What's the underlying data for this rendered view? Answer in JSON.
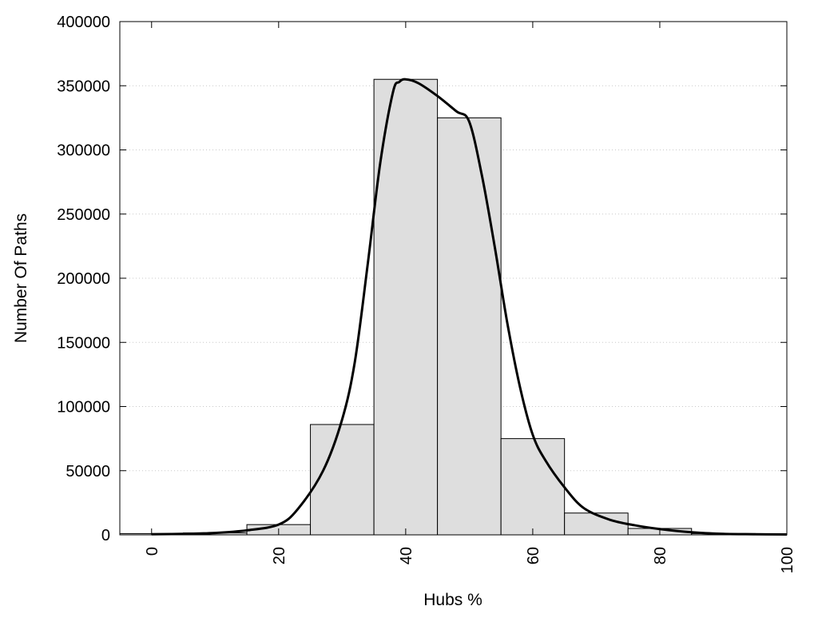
{
  "chart_data": {
    "type": "bar",
    "title": "",
    "xlabel": "Hubs %",
    "ylabel": "Number Of Paths",
    "xlim": [
      -5,
      100
    ],
    "ylim": [
      0,
      400000
    ],
    "grid": true,
    "x_ticks": [
      0,
      20,
      40,
      60,
      80,
      100
    ],
    "y_ticks": [
      0,
      50000,
      100000,
      150000,
      200000,
      250000,
      300000,
      350000,
      400000
    ],
    "bar_width": 10,
    "bars": [
      {
        "x": 0,
        "value": 1000
      },
      {
        "x": 10,
        "value": 1500
      },
      {
        "x": 20,
        "value": 8000
      },
      {
        "x": 30,
        "value": 86000
      },
      {
        "x": 40,
        "value": 355000
      },
      {
        "x": 50,
        "value": 325000
      },
      {
        "x": 60,
        "value": 75000
      },
      {
        "x": 70,
        "value": 17000
      },
      {
        "x": 80,
        "value": 5000
      },
      {
        "x": 90,
        "value": 1000
      }
    ],
    "curve": {
      "x": [
        0,
        5,
        10,
        15,
        20,
        23,
        27,
        30,
        32,
        34,
        36,
        38,
        39,
        40,
        42,
        45,
        48,
        50,
        52,
        54,
        56,
        58,
        60,
        62,
        65,
        68,
        72,
        76,
        80,
        85,
        90,
        95,
        100
      ],
      "y": [
        500,
        800,
        1500,
        3500,
        8000,
        20000,
        50000,
        90000,
        135000,
        210000,
        290000,
        345000,
        353000,
        355000,
        352000,
        342000,
        330000,
        322000,
        280000,
        225000,
        165000,
        115000,
        78000,
        58000,
        37000,
        21000,
        12000,
        7500,
        4500,
        2000,
        800,
        500,
        300
      ]
    },
    "colors": {
      "bar_fill": "#dedede",
      "bar_stroke": "#000000",
      "curve": "#000000",
      "grid": "#c8c8c8"
    }
  }
}
